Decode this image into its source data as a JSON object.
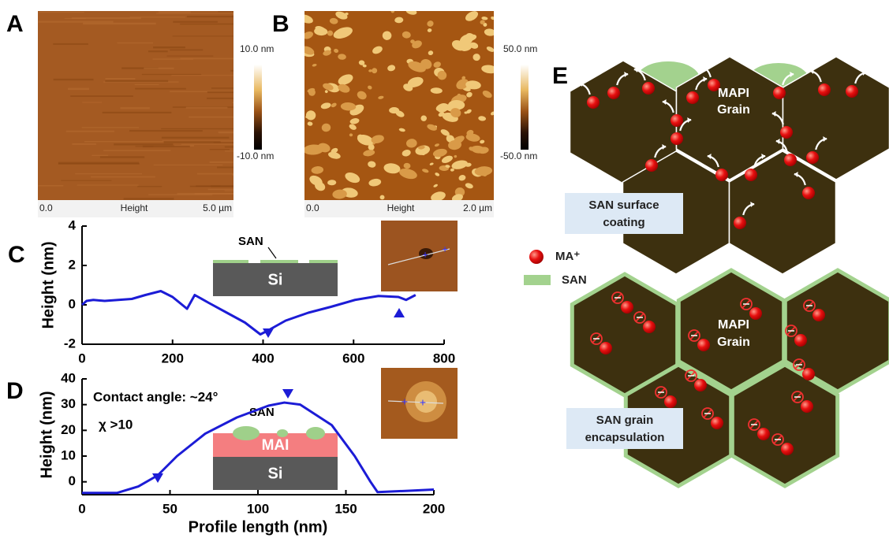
{
  "afm_images": [
    {
      "label": "A",
      "scale_start": "0.0",
      "channel": "Height",
      "scale_end": "5.0 µm",
      "colorbar_max": "10.0 nm",
      "colorbar_min": "-10.0 nm"
    },
    {
      "label": "B",
      "scale_start": "0.0",
      "channel": "Height",
      "scale_end": "2.0 µm",
      "colorbar_max": "50.0 nm",
      "colorbar_min": "-50.0 nm"
    }
  ],
  "chart_data": [
    {
      "type": "line",
      "panel_label": "C",
      "y_label": "Height (nm)",
      "x": [
        0,
        10,
        25,
        50,
        80,
        110,
        140,
        174,
        200,
        232,
        249,
        280,
        320,
        360,
        394,
        411,
        450,
        500,
        550,
        603,
        655,
        699,
        716,
        737
      ],
      "series": [
        {
          "color": "#1c1cd6",
          "values": [
            0,
            0.2,
            0.25,
            0.2,
            0.25,
            0.3,
            0.5,
            0.7,
            0.4,
            -0.2,
            0.5,
            0.1,
            -0.4,
            -0.9,
            -1.5,
            -1.3,
            -0.8,
            -0.4,
            -0.1,
            0.25,
            0.45,
            0.4,
            0.25,
            0.5
          ]
        }
      ],
      "xlim": [
        0,
        800
      ],
      "xticks": [
        0,
        200,
        400,
        600,
        800
      ],
      "ylim": [
        -2,
        4
      ],
      "yticks": [
        -2,
        0,
        2,
        4
      ],
      "inset_labels": [
        "SAN",
        "Si"
      ]
    },
    {
      "type": "line",
      "panel_label": "D",
      "y_label": "Height (nm)",
      "x_label": "Profile length (nm)",
      "x": [
        0,
        20,
        32,
        43,
        54,
        70,
        88,
        106,
        115,
        124,
        142,
        155,
        164,
        168,
        185,
        200
      ],
      "series": [
        {
          "color": "#1c1cd6",
          "values": [
            -4.3,
            -4.3,
            -1.8,
            2.5,
            10,
            18.7,
            25,
            29.6,
            30.8,
            30,
            22,
            10,
            0,
            -4,
            -3.5,
            -3
          ]
        }
      ],
      "xlim": [
        0,
        200
      ],
      "xticks": [
        0,
        50,
        100,
        150,
        200
      ],
      "ylim": [
        -5,
        40
      ],
      "yticks": [
        0,
        10,
        20,
        30,
        40
      ],
      "annotations": [
        "Contact angle: ~24°",
        "χ >10"
      ],
      "inset_labels": [
        "SAN",
        "MAI",
        "Si"
      ]
    }
  ],
  "schematic": {
    "panel_label": "E",
    "top_grain_label": [
      "MAPI",
      "Grain"
    ],
    "top_box": [
      "SAN surface",
      "coating"
    ],
    "bottom_grain_label": [
      "MAPI",
      "Grain"
    ],
    "bottom_box": [
      "SAN grain",
      "encapsulation"
    ],
    "legend": [
      "MA⁺",
      "SAN"
    ]
  }
}
